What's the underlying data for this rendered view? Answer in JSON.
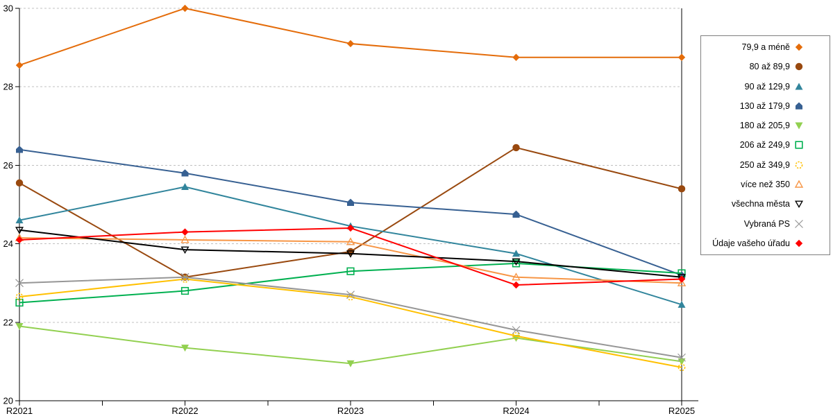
{
  "chart_data": {
    "type": "line",
    "title": "",
    "xlabel": "",
    "ylabel": "",
    "categories": [
      "R2021",
      "R2022",
      "R2023",
      "R2024",
      "R2025"
    ],
    "ylim": [
      20,
      30
    ],
    "yticks": [
      20,
      22,
      24,
      26,
      28,
      30
    ],
    "grid": "horizontal-dashed",
    "legend_position": "right",
    "series": [
      {
        "name": "79,9 a méně",
        "color": "#E46C0A",
        "marker": "diamond-filled",
        "values": [
          28.55,
          30.0,
          29.1,
          28.75,
          28.75
        ]
      },
      {
        "name": "80 až 89,9",
        "color": "#99490F",
        "marker": "circle-filled",
        "values": [
          25.55,
          23.15,
          23.8,
          26.45,
          25.4
        ]
      },
      {
        "name": "90 až 129,9",
        "color": "#31859C",
        "marker": "triangle-up-filled",
        "values": [
          24.6,
          25.45,
          24.45,
          23.75,
          22.45
        ]
      },
      {
        "name": "130 až 179,9",
        "color": "#376092",
        "marker": "pentagon-filled",
        "values": [
          26.4,
          25.8,
          25.05,
          24.75,
          23.2
        ]
      },
      {
        "name": "180 až 205,9",
        "color": "#92D050",
        "marker": "triangle-down-filled",
        "values": [
          21.9,
          21.35,
          20.95,
          21.6,
          21.0
        ]
      },
      {
        "name": "206 až 249,9",
        "color": "#00B050",
        "marker": "square-open",
        "values": [
          22.5,
          22.8,
          23.3,
          23.5,
          23.25
        ]
      },
      {
        "name": "250 až 349,9",
        "color": "#FFC000",
        "marker": "circle-open-dashed",
        "values": [
          22.65,
          23.1,
          22.65,
          21.65,
          20.85
        ]
      },
      {
        "name": "více než 350",
        "color": "#F79646",
        "marker": "triangle-up-open",
        "values": [
          24.15,
          24.1,
          24.05,
          23.15,
          23.0
        ]
      },
      {
        "name": "všechna města",
        "color": "#000000",
        "marker": "triangle-down-open",
        "values": [
          24.35,
          23.85,
          23.75,
          23.55,
          23.15
        ]
      },
      {
        "name": "Vybraná PS",
        "color": "#969696",
        "marker": "x-cross",
        "values": [
          23.0,
          23.15,
          22.7,
          21.8,
          21.1
        ]
      },
      {
        "name": "Údaje vašeho úřadu",
        "color": "#FF0000",
        "marker": "diamond-filled",
        "values": [
          24.1,
          24.3,
          24.4,
          22.95,
          23.1
        ]
      }
    ]
  },
  "colors": {
    "grid": "#C0C0C0",
    "axis": "#000000",
    "tick_label": "#000000",
    "legend_border": "#7F7F7F",
    "background": "#FFFFFF"
  }
}
